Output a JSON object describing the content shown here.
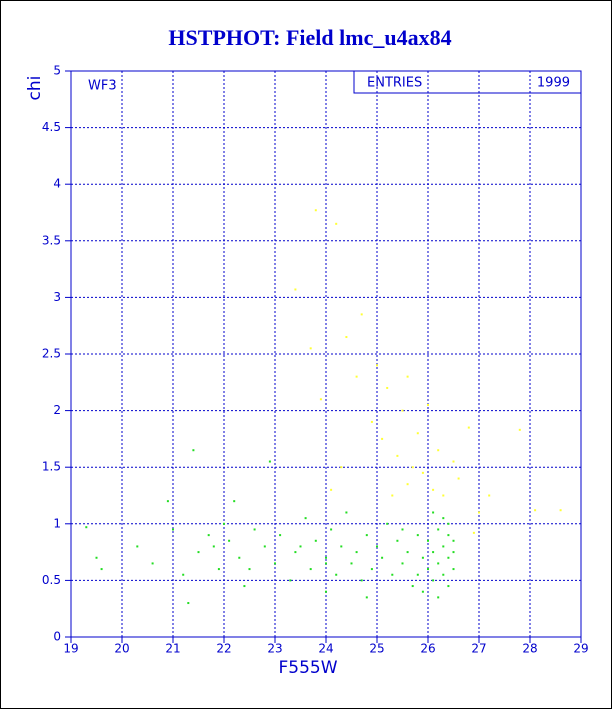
{
  "chart_data": {
    "type": "scatter",
    "title": "HSTPHOT: Field lmc_u4ax84",
    "xlabel": "F555W",
    "ylabel": "chi",
    "annotation": "WF3",
    "stats_label": "ENTRIES",
    "entries": 1999,
    "xlim": [
      19,
      29
    ],
    "ylim": [
      0,
      5
    ],
    "xticks": [
      19,
      20,
      21,
      22,
      23,
      24,
      25,
      26,
      27,
      28,
      29
    ],
    "yticks": [
      0,
      0.5,
      1,
      1.5,
      2,
      2.5,
      3,
      3.5,
      4,
      4.5,
      5
    ],
    "grid": true,
    "series": [
      {
        "color": "#22dd22",
        "x": [
          19.3,
          19.5,
          19.6,
          20.3,
          20.6,
          20.9,
          21.0,
          21.2,
          21.3,
          21.4,
          21.5,
          21.7,
          21.9,
          22.0,
          22.1,
          22.3,
          22.4,
          22.6,
          22.8,
          22.9,
          23.0,
          23.1,
          23.3,
          23.4,
          23.6,
          23.7,
          23.8,
          24.0,
          24.0,
          24.1,
          24.2,
          24.3,
          24.4,
          24.5,
          24.6,
          24.7,
          24.8,
          24.9,
          25.0,
          25.1,
          25.2,
          25.3,
          25.4,
          25.5,
          25.6,
          25.7,
          25.8,
          25.9,
          26.0,
          26.0,
          26.1,
          26.1,
          26.2,
          26.2,
          26.3,
          26.3,
          26.3,
          26.4,
          26.4,
          26.4,
          26.5,
          26.5,
          26.5,
          26.2,
          26.1,
          26.4,
          25.8,
          25.5,
          24.0,
          23.5,
          22.5,
          21.8,
          22.2,
          24.8,
          25.9
        ],
        "y": [
          0.97,
          0.7,
          0.6,
          0.8,
          0.65,
          1.2,
          0.95,
          0.55,
          0.3,
          1.65,
          0.75,
          0.9,
          0.6,
          1.0,
          0.85,
          0.7,
          0.45,
          0.95,
          0.8,
          1.55,
          0.65,
          0.9,
          0.5,
          0.75,
          1.05,
          0.6,
          0.85,
          0.7,
          0.4,
          0.95,
          0.55,
          0.8,
          1.1,
          0.65,
          0.75,
          0.5,
          0.9,
          0.6,
          0.8,
          0.7,
          1.0,
          0.55,
          0.85,
          0.65,
          0.75,
          0.45,
          0.9,
          0.7,
          0.6,
          0.85,
          0.75,
          0.5,
          0.95,
          0.65,
          0.8,
          0.55,
          1.05,
          0.7,
          0.9,
          0.45,
          0.75,
          0.6,
          0.85,
          0.35,
          1.1,
          1.0,
          0.55,
          0.95,
          0.65,
          0.8,
          0.6,
          0.8,
          1.2,
          0.35,
          0.4
        ]
      },
      {
        "color": "#ffff33",
        "x": [
          23.8,
          24.2,
          23.4,
          24.7,
          23.7,
          24.4,
          25.0,
          25.2,
          24.6,
          25.6,
          25.5,
          24.9,
          25.1,
          25.4,
          25.7,
          25.9,
          26.2,
          26.5,
          26.8,
          27.8,
          27.2,
          28.1,
          28.6,
          26.1,
          26.3,
          26.6,
          27.0,
          25.8,
          24.3,
          23.9,
          26.0,
          25.3,
          24.1,
          26.9,
          25.6
        ],
        "y": [
          3.77,
          3.65,
          3.07,
          2.85,
          2.55,
          2.65,
          2.4,
          2.2,
          2.3,
          2.3,
          2.0,
          1.9,
          1.75,
          1.6,
          1.5,
          1.45,
          1.65,
          1.55,
          1.85,
          1.83,
          1.25,
          1.12,
          1.12,
          1.3,
          1.25,
          1.4,
          1.1,
          1.8,
          1.5,
          2.1,
          2.05,
          1.25,
          1.3,
          0.92,
          1.35
        ]
      }
    ]
  }
}
